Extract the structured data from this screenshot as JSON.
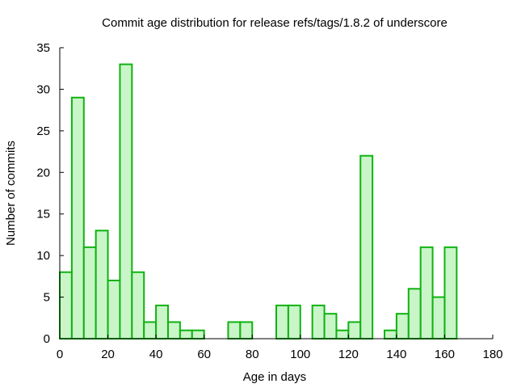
{
  "chart_data": {
    "type": "bar",
    "title": "Commit age distribution for release refs/tags/1.8.2 of underscore",
    "xlabel": "Age in days",
    "ylabel": "Number of commits",
    "xlim": [
      0,
      180
    ],
    "ylim": [
      0,
      35
    ],
    "xticks": [
      0,
      20,
      40,
      60,
      80,
      100,
      120,
      140,
      160,
      180
    ],
    "yticks": [
      0,
      5,
      10,
      15,
      20,
      25,
      30,
      35
    ],
    "bin_width": 5,
    "bins": [
      {
        "x": 0,
        "value": 8
      },
      {
        "x": 5,
        "value": 29
      },
      {
        "x": 10,
        "value": 11
      },
      {
        "x": 15,
        "value": 13
      },
      {
        "x": 20,
        "value": 7
      },
      {
        "x": 25,
        "value": 33
      },
      {
        "x": 30,
        "value": 8
      },
      {
        "x": 35,
        "value": 2
      },
      {
        "x": 40,
        "value": 4
      },
      {
        "x": 45,
        "value": 2
      },
      {
        "x": 50,
        "value": 1
      },
      {
        "x": 55,
        "value": 1
      },
      {
        "x": 70,
        "value": 2
      },
      {
        "x": 75,
        "value": 2
      },
      {
        "x": 90,
        "value": 4
      },
      {
        "x": 95,
        "value": 4
      },
      {
        "x": 105,
        "value": 4
      },
      {
        "x": 110,
        "value": 3
      },
      {
        "x": 115,
        "value": 1
      },
      {
        "x": 120,
        "value": 2
      },
      {
        "x": 125,
        "value": 22
      },
      {
        "x": 135,
        "value": 1
      },
      {
        "x": 140,
        "value": 3
      },
      {
        "x": 145,
        "value": 6
      },
      {
        "x": 150,
        "value": 11
      },
      {
        "x": 155,
        "value": 5
      },
      {
        "x": 160,
        "value": 11
      }
    ],
    "grid": false,
    "bar_fill": "#c9f5c9",
    "bar_stroke": "#0fb30f"
  }
}
